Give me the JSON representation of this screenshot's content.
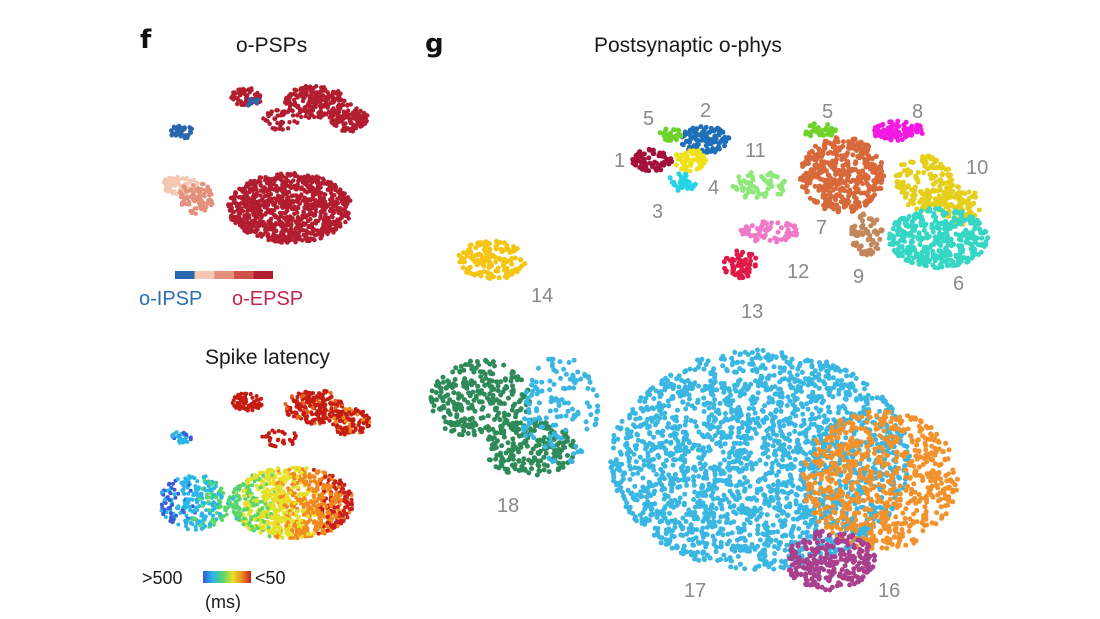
{
  "panel_f": {
    "letter": "f",
    "title_top": "o-PSPs",
    "title_bottom": "Spike latency",
    "legend": {
      "ipsp": "o-IPSP",
      "epsp": "o-EPSP",
      "psp_swatches": [
        "#2966b0",
        "#f3c7b2",
        "#e3917a",
        "#cc5146",
        "#b21d30"
      ],
      "latency_min": ">500",
      "latency_max": "<50",
      "latency_unit": "(ms)"
    }
  },
  "panel_g": {
    "letter": "g",
    "title": "Postsynaptic o-phys",
    "cluster_labels": [
      "1",
      "2",
      "3",
      "4",
      "5",
      "5",
      "6",
      "7",
      "8",
      "9",
      "10",
      "11",
      "12",
      "13",
      "14",
      "16",
      "17",
      "18"
    ]
  },
  "colors": {
    "ipsp": "#2966b0",
    "epsp": "#b21d30",
    "c1": "#a3123a",
    "c2": "#1f6fb8",
    "c3": "#27d3e6",
    "c4": "#f0e21a",
    "c5": "#6fd22a",
    "c6": "#35d6c4",
    "c7": "#d8693a",
    "c8": "#f21ae0",
    "c9": "#c2875a",
    "c10": "#e5cf1c",
    "c11": "#8ee87a",
    "c12": "#f07ac8",
    "c13": "#e01a48",
    "c14": "#f5c514",
    "c16": "#a8408e",
    "c17": "#3ab6e2",
    "c18": "#2f8a5a",
    "c_orange": "#f2922c"
  }
}
